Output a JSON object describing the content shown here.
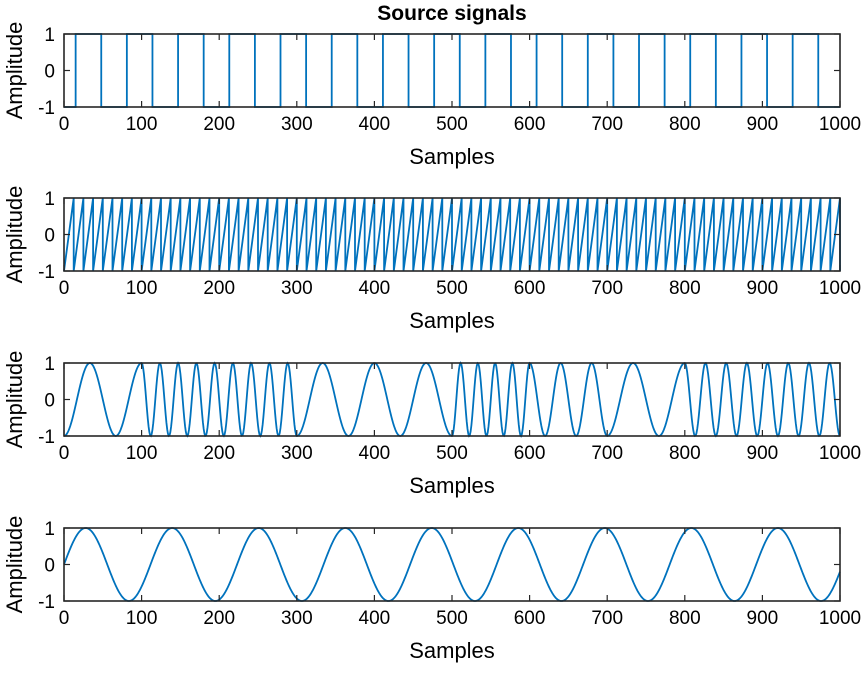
{
  "figure_title": "Source signals",
  "series_color": "#0072BD",
  "chart_data": [
    {
      "type": "line",
      "signal": "square",
      "period_samples": 66,
      "x": [
        0,
        1000
      ],
      "xlim": [
        0,
        1000
      ],
      "ylim": [
        -1,
        1
      ],
      "xticks": [
        0,
        100,
        200,
        300,
        400,
        500,
        600,
        700,
        800,
        900,
        1000
      ],
      "yticks": [
        -1,
        0,
        1
      ],
      "xlabel": "Samples",
      "ylabel": "Amplitude",
      "title": "Source signals"
    },
    {
      "type": "line",
      "signal": "sawtooth",
      "period_samples": 12.5,
      "x": [
        0,
        1000
      ],
      "xlim": [
        0,
        1000
      ],
      "ylim": [
        -1,
        1
      ],
      "xticks": [
        0,
        100,
        200,
        300,
        400,
        500,
        600,
        700,
        800,
        900,
        1000
      ],
      "yticks": [
        -1,
        0,
        1
      ],
      "xlabel": "Samples",
      "ylabel": "Amplitude"
    },
    {
      "type": "line",
      "signal": "chirp",
      "segments": [
        {
          "x_start": 0,
          "x_end": 100,
          "half_periods": 3
        },
        {
          "x_start": 100,
          "x_end": 300,
          "half_periods": 17
        },
        {
          "x_start": 300,
          "x_end": 400,
          "half_periods": 3
        },
        {
          "x_start": 400,
          "x_end": 500,
          "half_periods": 3
        },
        {
          "x_start": 500,
          "x_end": 600,
          "half_periods": 9
        },
        {
          "x_start": 600,
          "x_end": 700,
          "half_periods": 5
        },
        {
          "x_start": 700,
          "x_end": 800,
          "half_periods": 3
        },
        {
          "x_start": 800,
          "x_end": 1000,
          "half_periods": 15
        }
      ],
      "xlim": [
        0,
        1000
      ],
      "ylim": [
        -1,
        1
      ],
      "xticks": [
        0,
        100,
        200,
        300,
        400,
        500,
        600,
        700,
        800,
        900,
        1000
      ],
      "yticks": [
        -1,
        0,
        1
      ],
      "xlabel": "Samples",
      "ylabel": "Amplitude"
    },
    {
      "type": "line",
      "signal": "sine",
      "period_samples": 111.5,
      "x": [
        0,
        1000
      ],
      "xlim": [
        0,
        1000
      ],
      "ylim": [
        -1,
        1
      ],
      "xticks": [
        0,
        100,
        200,
        300,
        400,
        500,
        600,
        700,
        800,
        900,
        1000
      ],
      "yticks": [
        -1,
        0,
        1
      ],
      "xlabel": "Samples",
      "ylabel": "Amplitude"
    }
  ]
}
